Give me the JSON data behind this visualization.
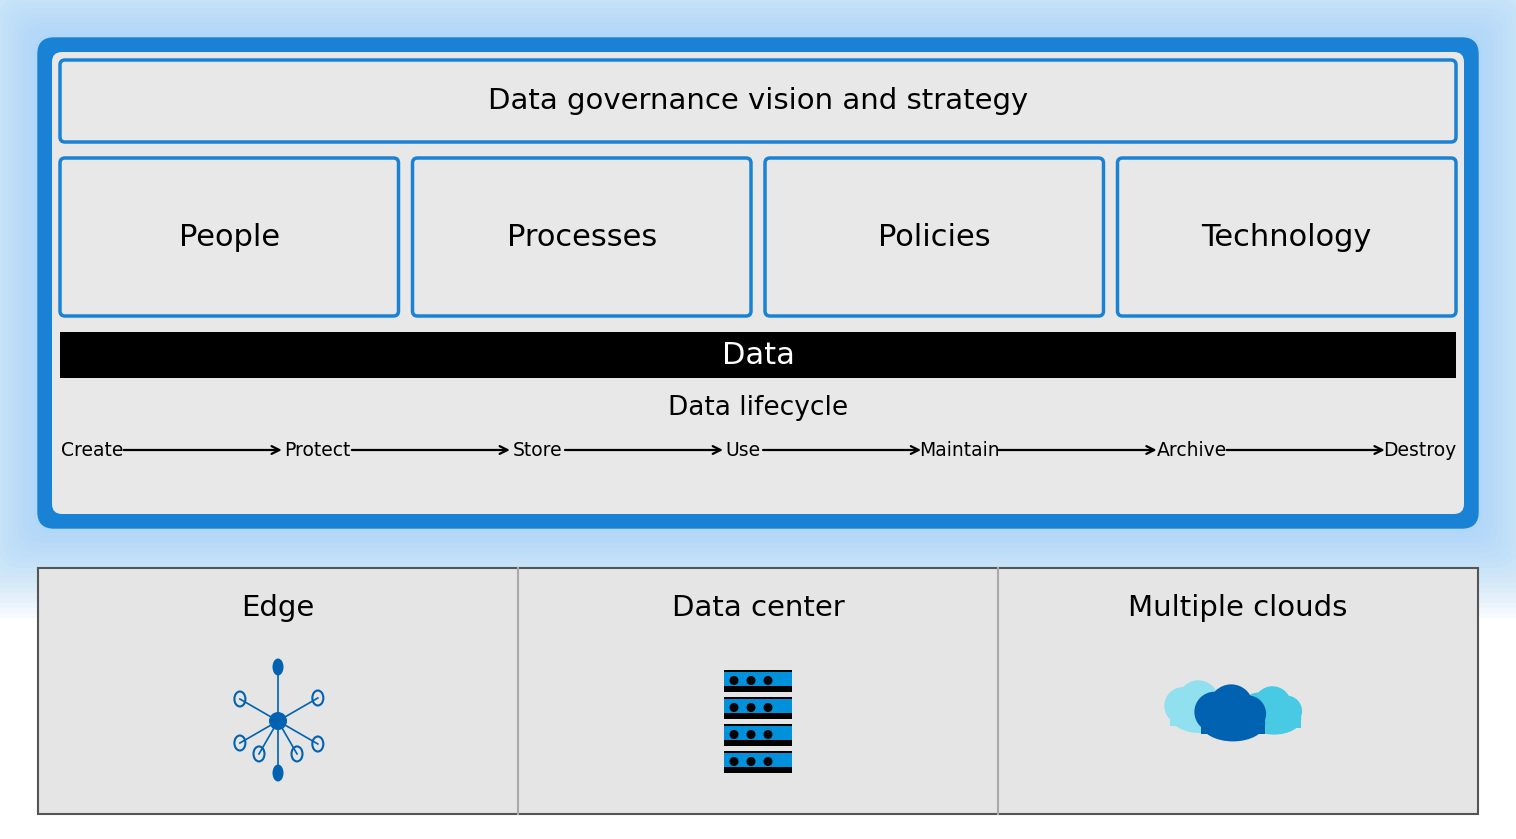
{
  "bg_color": "#ffffff",
  "blue_border": "#1a82d4",
  "light_gray_box": "#e8e8e8",
  "black": "#000000",
  "white": "#ffffff",
  "title_top": "Data governance vision and strategy",
  "pillars": [
    "People",
    "Processes",
    "Policies",
    "Technology"
  ],
  "data_label": "Data",
  "lifecycle_title": "Data lifecycle",
  "lifecycle_steps": [
    "Create",
    "Protect",
    "Store",
    "Use",
    "Maintain",
    "Archive",
    "Destroy"
  ],
  "bottom_labels": [
    "Edge",
    "Data center",
    "Multiple clouds"
  ],
  "blue_dark": "#0062b1",
  "blue_mid": "#0091da",
  "cyan_mid": "#00b4d8",
  "cyan_light": "#48cae4",
  "cyan_pale": "#90e0ef",
  "glow_inner": "#b8d8f8",
  "glow_outer": "#d8eeff",
  "bottom_border": "#555555",
  "bottom_bg": "#e5e5e5"
}
